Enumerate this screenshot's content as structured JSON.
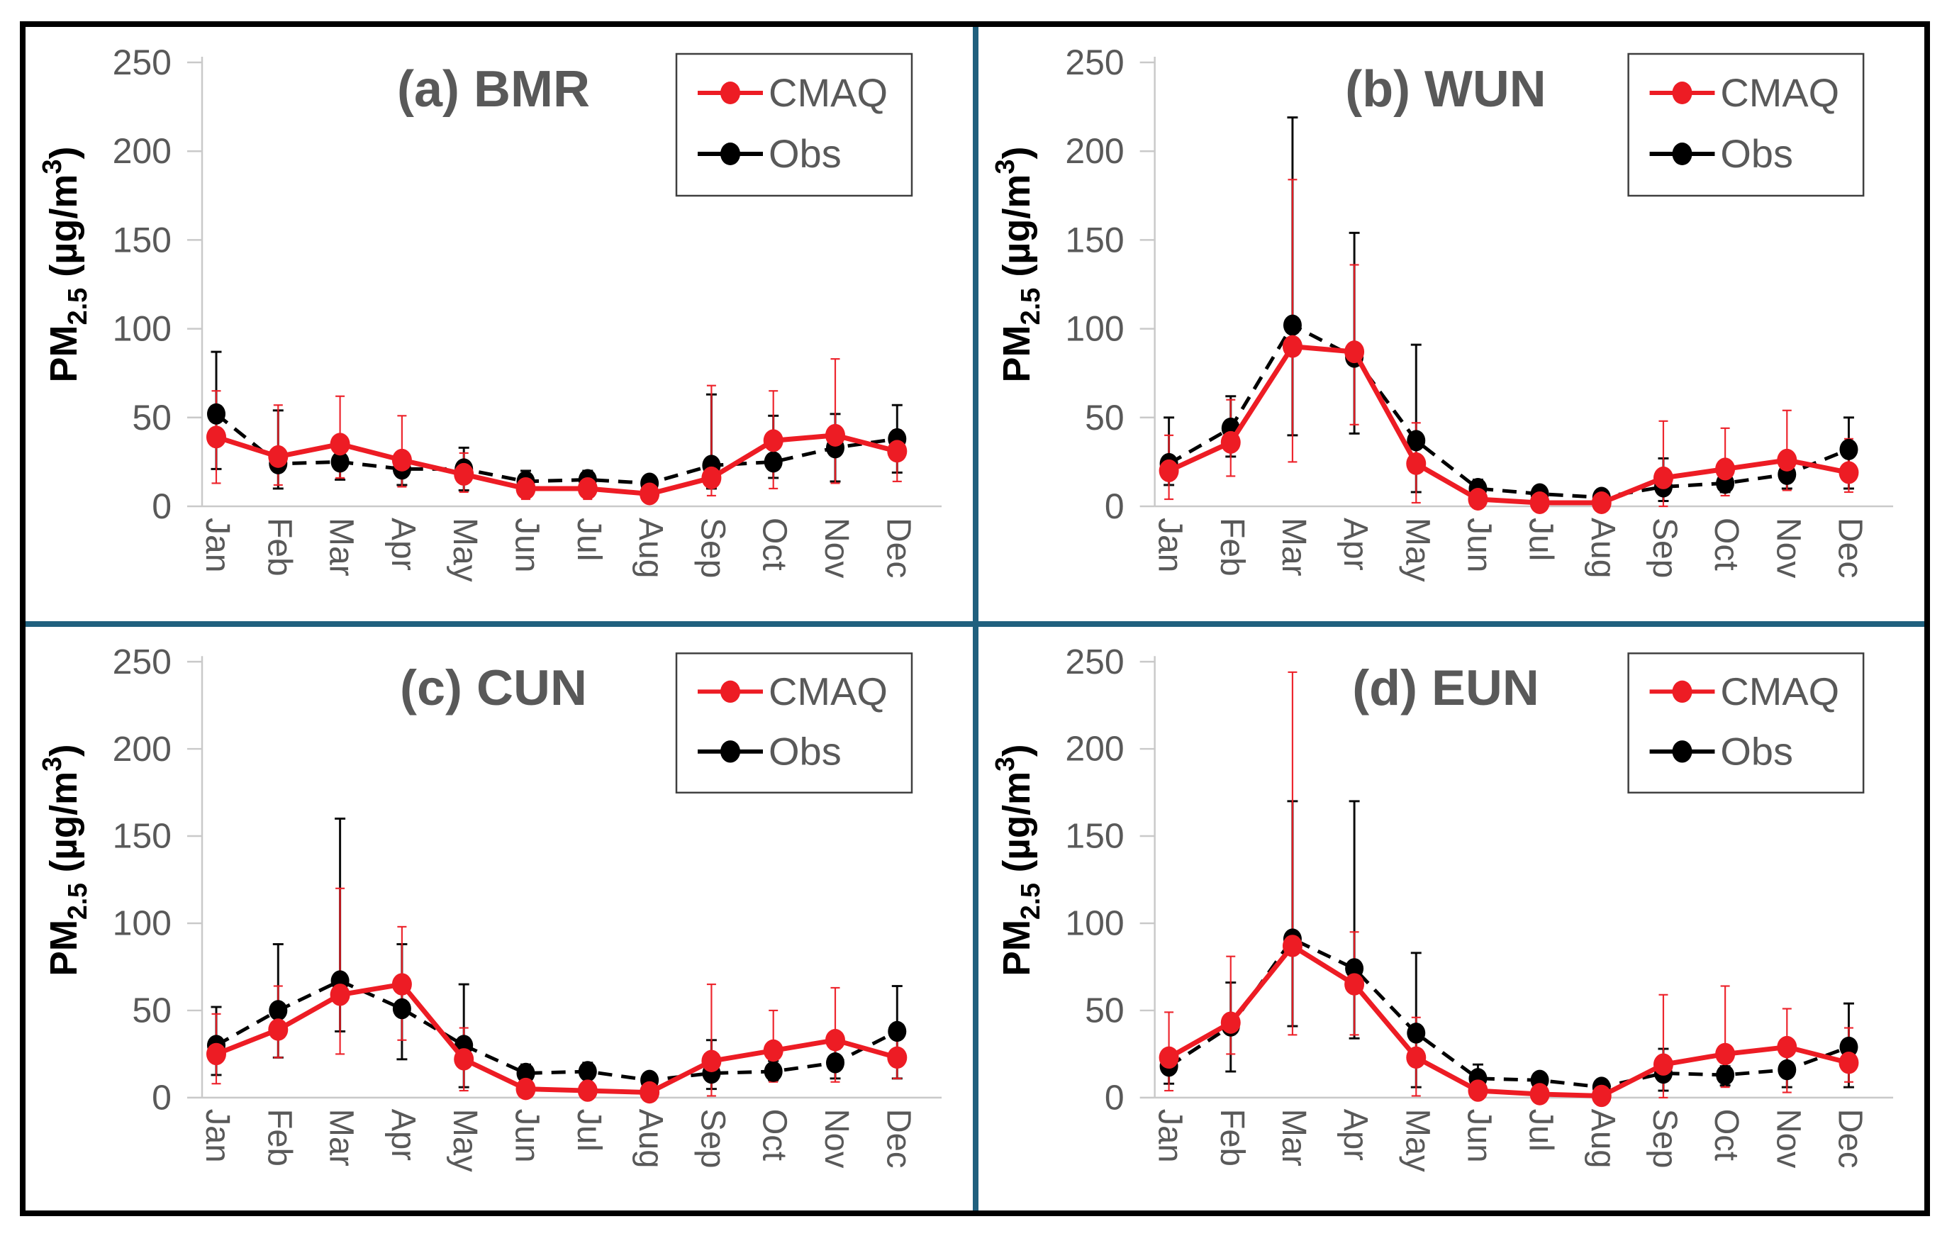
{
  "figure": {
    "background": "#ffffff",
    "border_color": "#000000",
    "divider_color": "#20607e"
  },
  "colors": {
    "cmaq": "#ed1c24",
    "obs": "#000000",
    "label_grey": "#595959",
    "axis_grey": "#c9c9c9",
    "legend_border": "#3f3f3f"
  },
  "y_axis": {
    "label_pre": "PM",
    "label_sub": "2.5",
    "label_mid": " (µg/m",
    "label_sup": "3",
    "label_post": ")",
    "ticks": [
      0,
      50,
      100,
      150,
      200,
      250
    ],
    "max": 250
  },
  "months": [
    "Jan",
    "Feb",
    "Mar",
    "Apr",
    "May",
    "Jun",
    "Jul",
    "Aug",
    "Sep",
    "Oct",
    "Nov",
    "Dec"
  ],
  "legend": {
    "items": [
      {
        "label": "CMAQ",
        "color": "#ed1c24"
      },
      {
        "label": "Obs",
        "color": "#000000"
      }
    ]
  },
  "chart_data": [
    {
      "type": "line",
      "panel": "a",
      "title": "(a) BMR",
      "ylim": [
        0,
        250
      ],
      "grid": false,
      "legend_position": "top-right",
      "categories": [
        "Jan",
        "Feb",
        "Mar",
        "Apr",
        "May",
        "Jun",
        "Jul",
        "Aug",
        "Sep",
        "Oct",
        "Nov",
        "Dec"
      ],
      "series": [
        {
          "name": "CMAQ",
          "style": "solid",
          "color": "#ed1c24",
          "values": [
            39,
            28,
            35,
            26,
            18,
            10,
            10,
            7,
            16,
            37,
            40,
            31
          ],
          "upper": [
            65,
            57,
            62,
            51,
            30,
            16,
            15,
            12,
            68,
            65,
            83,
            43
          ],
          "lower": [
            13,
            12,
            16,
            11,
            8,
            4,
            4,
            2,
            6,
            10,
            13,
            14
          ]
        },
        {
          "name": "Obs",
          "style": "dashed",
          "color": "#000000",
          "values": [
            52,
            24,
            25,
            21,
            21,
            14,
            15,
            13,
            23,
            25,
            33,
            38
          ],
          "upper": [
            87,
            54,
            34,
            30,
            33,
            20,
            20,
            17,
            63,
            51,
            52,
            57
          ],
          "lower": [
            21,
            10,
            15,
            12,
            9,
            8,
            9,
            8,
            10,
            16,
            14,
            19
          ]
        }
      ]
    },
    {
      "type": "line",
      "panel": "b",
      "title": "(b) WUN",
      "ylim": [
        0,
        250
      ],
      "grid": false,
      "legend_position": "top-right",
      "categories": [
        "Jan",
        "Feb",
        "Mar",
        "Apr",
        "May",
        "Jun",
        "Jul",
        "Aug",
        "Sep",
        "Oct",
        "Nov",
        "Dec"
      ],
      "series": [
        {
          "name": "CMAQ",
          "style": "solid",
          "color": "#ed1c24",
          "values": [
            20,
            36,
            90,
            87,
            24,
            4,
            2,
            2,
            16,
            21,
            26,
            19
          ],
          "upper": [
            40,
            60,
            184,
            136,
            47,
            8,
            5,
            5,
            48,
            44,
            54,
            38
          ],
          "lower": [
            4,
            17,
            25,
            46,
            2,
            1,
            0,
            0,
            0,
            6,
            9,
            8
          ]
        },
        {
          "name": "Obs",
          "style": "dashed",
          "color": "#000000",
          "values": [
            24,
            44,
            102,
            84,
            37,
            10,
            7,
            5,
            11,
            13,
            18,
            32
          ],
          "upper": [
            50,
            62,
            219,
            154,
            91,
            15,
            11,
            9,
            27,
            20,
            25,
            50
          ],
          "lower": [
            12,
            28,
            40,
            41,
            8,
            5,
            3,
            2,
            3,
            8,
            10,
            10
          ]
        }
      ]
    },
    {
      "type": "line",
      "panel": "c",
      "title": "(c) CUN",
      "ylim": [
        0,
        250
      ],
      "grid": false,
      "legend_position": "top-right",
      "categories": [
        "Jan",
        "Feb",
        "Mar",
        "Apr",
        "May",
        "Jun",
        "Jul",
        "Aug",
        "Sep",
        "Oct",
        "Nov",
        "Dec"
      ],
      "series": [
        {
          "name": "CMAQ",
          "style": "solid",
          "color": "#ed1c24",
          "values": [
            25,
            39,
            59,
            65,
            22,
            5,
            4,
            3,
            21,
            27,
            33,
            23
          ],
          "upper": [
            48,
            64,
            120,
            98,
            40,
            9,
            7,
            6,
            65,
            50,
            63,
            40
          ],
          "lower": [
            8,
            23,
            25,
            33,
            4,
            1,
            1,
            0,
            1,
            9,
            9,
            11
          ]
        },
        {
          "name": "Obs",
          "style": "dashed",
          "color": "#000000",
          "values": [
            30,
            50,
            67,
            51,
            30,
            14,
            15,
            10,
            14,
            15,
            20,
            38
          ],
          "upper": [
            52,
            88,
            160,
            88,
            65,
            19,
            20,
            14,
            33,
            21,
            28,
            64
          ],
          "lower": [
            13,
            23,
            38,
            22,
            6,
            8,
            9,
            6,
            5,
            10,
            11,
            11
          ]
        }
      ]
    },
    {
      "type": "line",
      "panel": "d",
      "title": "(d) EUN",
      "ylim": [
        0,
        250
      ],
      "grid": false,
      "legend_position": "top-right",
      "categories": [
        "Jan",
        "Feb",
        "Mar",
        "Apr",
        "May",
        "Jun",
        "Jul",
        "Aug",
        "Sep",
        "Oct",
        "Nov",
        "Dec"
      ],
      "series": [
        {
          "name": "CMAQ",
          "style": "solid",
          "color": "#ed1c24",
          "values": [
            23,
            43,
            87,
            65,
            23,
            4,
            2,
            1,
            19,
            25,
            29,
            20
          ],
          "upper": [
            49,
            81,
            244,
            95,
            46,
            8,
            6,
            5,
            59,
            64,
            51,
            40
          ],
          "lower": [
            4,
            25,
            36,
            36,
            1,
            0,
            0,
            0,
            0,
            6,
            3,
            9
          ]
        },
        {
          "name": "Obs",
          "style": "dashed",
          "color": "#000000",
          "values": [
            18,
            41,
            91,
            74,
            37,
            11,
            10,
            6,
            14,
            13,
            16,
            29
          ],
          "upper": [
            24,
            66,
            170,
            170,
            83,
            19,
            13,
            9,
            28,
            18,
            26,
            54
          ],
          "lower": [
            8,
            15,
            41,
            34,
            6,
            5,
            4,
            2,
            4,
            7,
            6,
            6
          ]
        }
      ]
    }
  ]
}
